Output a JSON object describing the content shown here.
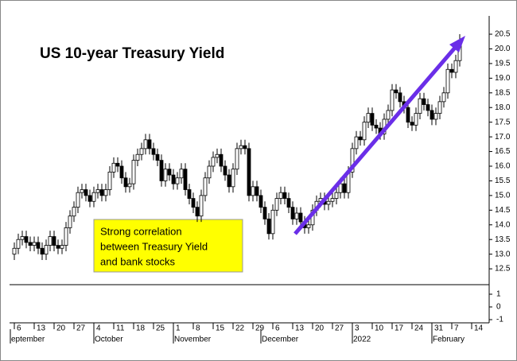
{
  "chart_data": {
    "type": "candlestick",
    "title": "US 10-year Treasury Yield",
    "annotation": [
      "Strong correlation",
      "between Treasury Yield",
      "and bank stocks"
    ],
    "up_color": "#ffffff",
    "down_color": "#000000",
    "candles": {
      "open": [
        13.0,
        13.2,
        13.5,
        13.6,
        13.4,
        13.3,
        13.4,
        13.2,
        13.0,
        13.3,
        13.6,
        13.3,
        13.2,
        13.3,
        13.9,
        14.3,
        14.6,
        15.1,
        15.2,
        15.0,
        14.8,
        15.1,
        15.2,
        15.0,
        15.2,
        15.8,
        16.1,
        16.0,
        15.6,
        15.3,
        15.4,
        16.2,
        16.4,
        16.6,
        16.9,
        16.6,
        16.4,
        16.2,
        15.5,
        15.9,
        15.7,
        15.4,
        15.6,
        15.9,
        15.2,
        14.9,
        14.6,
        14.3,
        15.0,
        15.6,
        16.0,
        16.3,
        16.4,
        16.0,
        15.7,
        15.3,
        15.9,
        16.6,
        16.7,
        16.6,
        15.0,
        15.3,
        15.0,
        14.6,
        14.2,
        13.7,
        14.5,
        14.9,
        15.1,
        14.9,
        14.6,
        14.2,
        14.4,
        14.1,
        13.9,
        14.0,
        14.5,
        14.8,
        14.9,
        14.7,
        14.8,
        14.9,
        15.1,
        15.4,
        15.1,
        15.8,
        16.6,
        17.0,
        16.9,
        17.5,
        17.8,
        17.4,
        17.3,
        17.1,
        17.6,
        17.9,
        18.6,
        18.5,
        18.2,
        18.0,
        17.5,
        17.4,
        17.8,
        18.3,
        18.1,
        17.9,
        17.6,
        17.8,
        18.2,
        18.5,
        19.3,
        19.2,
        19.6
      ],
      "high": [
        13.4,
        13.7,
        13.8,
        13.8,
        13.6,
        13.6,
        13.6,
        13.4,
        13.5,
        13.8,
        13.8,
        13.5,
        13.5,
        14.1,
        14.5,
        14.8,
        15.3,
        15.4,
        15.4,
        15.2,
        15.3,
        15.4,
        15.4,
        15.4,
        16.0,
        16.3,
        16.3,
        16.2,
        15.8,
        15.6,
        16.4,
        16.6,
        16.8,
        17.1,
        17.1,
        16.8,
        16.6,
        16.4,
        16.1,
        16.1,
        15.9,
        15.8,
        16.1,
        16.1,
        15.4,
        15.1,
        14.8,
        15.2,
        15.8,
        16.2,
        16.5,
        16.6,
        16.6,
        16.2,
        15.9,
        16.1,
        16.8,
        16.9,
        16.9,
        16.8,
        15.5,
        15.5,
        15.2,
        14.8,
        14.4,
        14.7,
        15.1,
        15.3,
        15.3,
        15.1,
        14.8,
        14.6,
        14.6,
        14.3,
        14.2,
        14.7,
        15.0,
        15.1,
        15.1,
        15.0,
        15.1,
        15.3,
        15.6,
        15.6,
        16.0,
        16.8,
        17.2,
        17.2,
        17.7,
        18.0,
        18.0,
        17.6,
        17.5,
        17.8,
        18.1,
        18.8,
        18.8,
        18.7,
        18.4,
        18.2,
        17.7,
        18.0,
        18.5,
        18.5,
        18.3,
        18.1,
        18.0,
        18.4,
        18.7,
        19.5,
        19.5,
        19.8,
        20.5
      ],
      "low": [
        12.8,
        13.0,
        13.3,
        13.2,
        13.1,
        13.1,
        13.0,
        12.8,
        12.8,
        13.1,
        13.1,
        13.0,
        13.0,
        13.1,
        13.7,
        14.1,
        14.4,
        14.9,
        14.8,
        14.6,
        14.6,
        14.9,
        14.8,
        14.8,
        15.0,
        15.6,
        15.8,
        15.4,
        15.1,
        15.1,
        15.2,
        16.0,
        16.2,
        16.4,
        16.4,
        16.2,
        16.0,
        15.3,
        15.3,
        15.5,
        15.2,
        15.2,
        15.4,
        15.0,
        14.7,
        14.4,
        14.1,
        14.1,
        14.8,
        15.4,
        15.8,
        16.1,
        15.8,
        15.5,
        15.1,
        15.1,
        15.7,
        16.4,
        16.4,
        14.8,
        14.8,
        14.8,
        14.4,
        14.0,
        13.5,
        13.5,
        14.3,
        14.7,
        14.7,
        14.4,
        14.0,
        14.0,
        13.9,
        13.7,
        13.7,
        13.8,
        14.3,
        14.6,
        14.5,
        14.5,
        14.6,
        14.7,
        14.9,
        14.9,
        14.9,
        15.6,
        16.4,
        16.7,
        16.7,
        17.3,
        17.2,
        17.1,
        16.9,
        16.9,
        17.4,
        17.7,
        18.3,
        18.0,
        17.8,
        17.3,
        17.2,
        17.2,
        17.6,
        17.9,
        17.7,
        17.4,
        17.4,
        17.6,
        18.0,
        18.3,
        19.0,
        19.0,
        19.4
      ],
      "close": [
        13.2,
        13.5,
        13.6,
        13.4,
        13.3,
        13.4,
        13.2,
        13.0,
        13.3,
        13.6,
        13.3,
        13.2,
        13.3,
        13.9,
        14.3,
        14.6,
        15.1,
        15.2,
        15.0,
        14.8,
        15.1,
        15.2,
        15.0,
        15.2,
        15.8,
        16.1,
        16.0,
        15.6,
        15.3,
        15.4,
        16.2,
        16.4,
        16.6,
        16.9,
        16.6,
        16.4,
        16.2,
        15.5,
        15.9,
        15.7,
        15.4,
        15.6,
        15.9,
        15.2,
        14.9,
        14.6,
        14.3,
        15.0,
        15.6,
        16.0,
        16.3,
        16.4,
        16.0,
        15.7,
        15.3,
        15.9,
        16.6,
        16.7,
        16.6,
        15.0,
        15.3,
        15.0,
        14.6,
        14.2,
        13.7,
        14.5,
        14.9,
        15.1,
        14.9,
        14.6,
        14.2,
        14.4,
        14.1,
        13.9,
        14.0,
        14.5,
        14.8,
        14.9,
        14.7,
        14.8,
        14.9,
        15.1,
        15.4,
        15.1,
        15.8,
        16.6,
        17.0,
        16.9,
        17.5,
        17.8,
        17.4,
        17.3,
        17.1,
        17.6,
        17.9,
        18.6,
        18.5,
        18.2,
        18.0,
        17.5,
        17.4,
        17.8,
        18.3,
        18.1,
        17.9,
        17.6,
        17.8,
        18.2,
        18.5,
        19.3,
        19.2,
        19.6,
        20.3
      ]
    },
    "xlim": [
      -1,
      119.4
    ],
    "xticks": [
      {
        "value": 0,
        "label": "6"
      },
      {
        "value": 5,
        "label": "13"
      },
      {
        "value": 10,
        "label": "20"
      },
      {
        "value": 15,
        "label": "27"
      },
      {
        "value": 20,
        "label": "4"
      },
      {
        "value": 25,
        "label": "11"
      },
      {
        "value": 30,
        "label": "18"
      },
      {
        "value": 35,
        "label": "25"
      },
      {
        "value": 40,
        "label": "1"
      },
      {
        "value": 45,
        "label": "8"
      },
      {
        "value": 50,
        "label": "15"
      },
      {
        "value": 55,
        "label": "22"
      },
      {
        "value": 60,
        "label": "29"
      },
      {
        "value": 65,
        "label": "6"
      },
      {
        "value": 70,
        "label": "13"
      },
      {
        "value": 75,
        "label": "20"
      },
      {
        "value": 80,
        "label": "27"
      },
      {
        "value": 85,
        "label": "3"
      },
      {
        "value": 90,
        "label": "10"
      },
      {
        "value": 95,
        "label": "17"
      },
      {
        "value": 100,
        "label": "24"
      },
      {
        "value": 105,
        "label": "31"
      },
      {
        "value": 110,
        "label": "7"
      },
      {
        "value": 115,
        "label": "14"
      }
    ],
    "month_labels": [
      {
        "value": -1,
        "label": "eptember"
      },
      {
        "value": 20,
        "label": "October"
      },
      {
        "value": 40,
        "label": "November"
      },
      {
        "value": 62,
        "label": "December"
      },
      {
        "value": 85,
        "label": "2022"
      },
      {
        "value": 105,
        "label": "February"
      }
    ],
    "ylim": [
      11.96,
      21.07
    ],
    "yticks": [
      12.5,
      {
        "value": 13,
        "label": "13.0"
      },
      13.5,
      {
        "value": 14,
        "label": "14.0"
      },
      14.5,
      {
        "value": 15,
        "label": "15.0"
      },
      15.5,
      {
        "value": 16,
        "label": "16.0"
      },
      16.5,
      {
        "value": 17,
        "label": "17.0"
      },
      17.5,
      {
        "value": 18,
        "label": "18.0"
      },
      18.5,
      {
        "value": 19,
        "label": "19.0"
      },
      19.5,
      {
        "value": 20,
        "label": "20.0"
      },
      20.5
    ],
    "lower_panel": {
      "ylim": [
        -1.25,
        1.75
      ],
      "yticks": [
        1,
        0,
        -1
      ]
    }
  }
}
